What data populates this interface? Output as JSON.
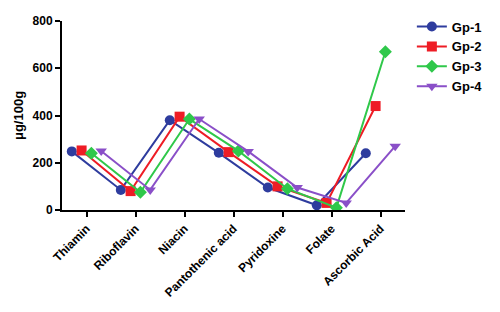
{
  "chart_data": {
    "type": "line",
    "y_label": "μg/100g",
    "categories": [
      "Thiamin",
      "Riboflavin",
      "Niacin",
      "Pantothenic acid",
      "Pyridoxine",
      "Folate",
      "Ascorbic Acid"
    ],
    "series": [
      {
        "name": "Gp-1",
        "color": "#2e3c9e",
        "marker": "circle",
        "values": [
          248,
          85,
          380,
          242,
          95,
          20,
          240
        ]
      },
      {
        "name": "Gp-2",
        "color": "#ee1c25",
        "marker": "square",
        "values": [
          252,
          80,
          395,
          245,
          100,
          30,
          440
        ]
      },
      {
        "name": "Gp-3",
        "color": "#2fc84a",
        "marker": "diamond",
        "values": [
          240,
          75,
          385,
          250,
          90,
          10,
          670
        ]
      },
      {
        "name": "Gp-4",
        "color": "#8a4fc8",
        "marker": "triangle-down",
        "values": [
          250,
          85,
          385,
          248,
          95,
          30,
          270
        ]
      }
    ],
    "ylim": [
      0,
      800
    ],
    "yticks": [
      0,
      200,
      400,
      600,
      800
    ],
    "grid": false,
    "legend": "right"
  }
}
